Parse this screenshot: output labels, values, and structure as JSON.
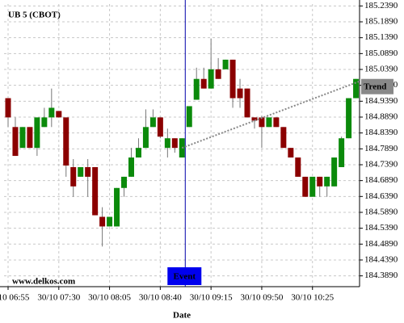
{
  "chart_data": {
    "type": "candlestick",
    "title": "UB 5 (CBOT)",
    "watermark": "www.delkos.com",
    "x_label": "Date",
    "categories": [
      "30/10 06:55",
      null,
      null,
      null,
      null,
      null,
      null,
      "30/10 07:30",
      null,
      null,
      null,
      null,
      null,
      null,
      "30/10 08:05",
      null,
      null,
      null,
      null,
      null,
      null,
      "30/10 08:40",
      null,
      null,
      null,
      null,
      null,
      null,
      "30/10 09:15",
      null,
      null,
      null,
      null,
      null,
      null,
      "30/10 09:50",
      null,
      null,
      null,
      null,
      null,
      null,
      "30/10 10:25",
      null,
      null,
      null,
      null,
      null,
      null
    ],
    "open": [
      184.9486,
      184.8577,
      184.792,
      184.8577,
      184.792,
      184.8577,
      184.888,
      184.9082,
      184.888,
      184.7314,
      184.7011,
      184.7314,
      184.7314,
      184.5749,
      184.5446,
      184.5446,
      184.6658,
      184.7011,
      184.7617,
      184.792,
      184.8577,
      184.888,
      184.792,
      184.8223,
      184.7617,
      184.8577,
      184.9436,
      185.0092,
      184.9789,
      185.0395,
      185.0395,
      185.0698,
      184.9789,
      184.9789,
      184.888,
      184.888,
      184.8577,
      184.888,
      184.8577,
      184.792,
      184.7617,
      184.7011,
      184.638,
      184.7011,
      184.6708,
      184.6708,
      184.7314,
      184.8223,
      184.9486
    ],
    "high": [
      184.9486,
      184.888,
      184.8577,
      184.8577,
      184.888,
      184.9183,
      184.9789,
      184.9082,
      184.888,
      184.7567,
      184.7314,
      184.7567,
      184.7314,
      184.6052,
      184.5749,
      184.6658,
      184.7011,
      184.792,
      184.8223,
      184.9133,
      184.9133,
      184.888,
      184.8527,
      184.8223,
      184.8223,
      184.9234,
      185.0446,
      185.0446,
      185.1355,
      185.0749,
      185.0698,
      185.0698,
      185.0092,
      184.9789,
      184.888,
      184.8931,
      184.888,
      184.888,
      184.8577,
      184.792,
      184.7617,
      184.7011,
      184.7011,
      184.7011,
      184.7011,
      184.7617,
      184.8274,
      184.9486,
      185.0092
    ],
    "low": [
      184.8577,
      184.7668,
      184.792,
      184.792,
      184.7668,
      184.8577,
      184.8577,
      184.888,
      184.7011,
      184.638,
      184.7011,
      184.638,
      184.5799,
      184.4814,
      184.5446,
      184.5446,
      184.638,
      184.7011,
      184.7617,
      184.792,
      184.8577,
      184.8223,
      184.7617,
      184.7769,
      184.7617,
      184.8577,
      184.9436,
      184.9789,
      184.9789,
      185.0092,
      185.0395,
      184.9183,
      184.9183,
      184.888,
      184.8527,
      184.792,
      184.8577,
      184.8577,
      184.792,
      184.7617,
      184.7011,
      184.638,
      184.638,
      184.638,
      184.638,
      184.6708,
      184.7314,
      184.8223,
      184.9486
    ],
    "close": [
      184.888,
      184.7668,
      184.8577,
      184.792,
      184.888,
      184.888,
      184.9183,
      184.888,
      184.7365,
      184.6708,
      184.7314,
      184.7011,
      184.5799,
      184.5446,
      184.5749,
      184.6658,
      184.7011,
      184.7617,
      184.792,
      184.8577,
      184.888,
      184.8274,
      184.8223,
      184.792,
      184.8223,
      184.9234,
      185.0092,
      184.9789,
      185.0395,
      185.0092,
      185.0698,
      184.9486,
      184.9486,
      184.888,
      184.8779,
      184.8577,
      184.888,
      184.8577,
      184.792,
      184.7617,
      184.7011,
      184.638,
      184.7011,
      184.6708,
      184.7011,
      184.7617,
      184.8223,
      184.9486,
      185.0092
    ],
    "up_color": "#0b8a0b",
    "down_color": "#8b0000",
    "ylim": [
      184.355,
      185.245
    ],
    "yticks": [
      {
        "value": 185.239,
        "label": "185.2390"
      },
      {
        "value": 185.189,
        "label": "185.1890"
      },
      {
        "value": 185.139,
        "label": "185.1390"
      },
      {
        "value": 185.089,
        "label": "185.0890"
      },
      {
        "value": 185.039,
        "label": "185.0390"
      },
      {
        "value": 184.989,
        "label": "184.9890"
      },
      {
        "value": 184.939,
        "label": "184.9390"
      },
      {
        "value": 184.889,
        "label": "184.8890"
      },
      {
        "value": 184.839,
        "label": "184.8390"
      },
      {
        "value": 184.789,
        "label": "184.7890"
      },
      {
        "value": 184.739,
        "label": "184.7390"
      },
      {
        "value": 184.689,
        "label": "184.6890"
      },
      {
        "value": 184.639,
        "label": "184.6390"
      },
      {
        "value": 184.589,
        "label": "184.5890"
      },
      {
        "value": 184.539,
        "label": "184.5390"
      },
      {
        "value": 184.489,
        "label": "184.4890"
      },
      {
        "value": 184.439,
        "label": "184.4390"
      },
      {
        "value": 184.389,
        "label": "184.3890"
      }
    ],
    "grid": true,
    "event": {
      "label": "Event"
    },
    "trend": {
      "label": "Trend",
      "values": [
        184.792,
        185.0016
      ],
      "color": "#888888"
    }
  }
}
